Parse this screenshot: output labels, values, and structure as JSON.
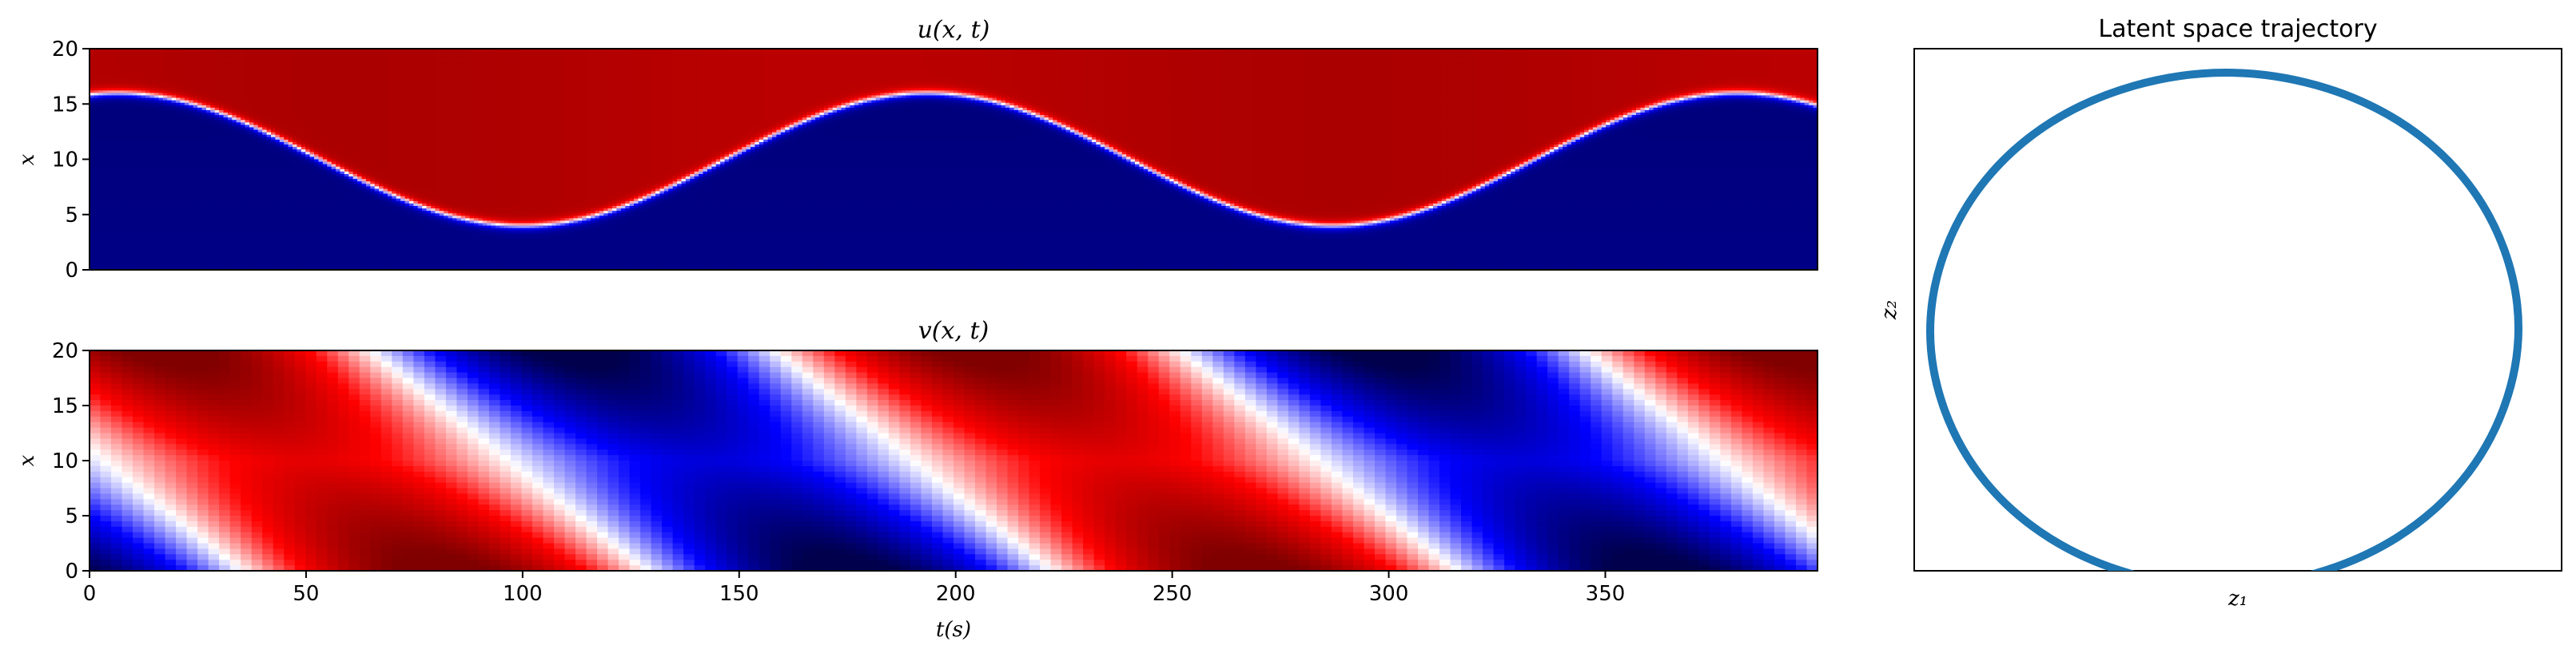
{
  "chart_data": [
    {
      "type": "heatmap",
      "title": "u(x, t)",
      "ylabel": "x",
      "xlim": [
        0,
        399
      ],
      "ylim": [
        0,
        20
      ],
      "yticks": [
        "0",
        "5",
        "10",
        "15",
        "20"
      ],
      "colormap": "seismic",
      "front": {
        "mean_x": 10.0,
        "amplitude_x": 6.0,
        "period_t": 187,
        "phase_peak_t": 100
      },
      "description_values": {
        "below_front": "negative (blue)",
        "above_front": "positive (red)"
      }
    },
    {
      "type": "heatmap",
      "title": "v(x, t)",
      "xlabel": "t(s)",
      "ylabel": "x",
      "xlim": [
        0,
        399
      ],
      "ylim": [
        0,
        20
      ],
      "xticks": [
        "0",
        "50",
        "100",
        "150",
        "200",
        "250",
        "300",
        "350"
      ],
      "yticks": [
        "0",
        "5",
        "10",
        "15",
        "20"
      ],
      "colormap": "seismic",
      "wave": {
        "period_t": 187,
        "red_peak_t": 50,
        "blue_peak_t": 140
      }
    },
    {
      "type": "line",
      "title": "Latent space trajectory",
      "xlabel": "z₁",
      "ylabel": "z₂",
      "color": "#1f77b4",
      "shape": "closed loop (ellipse)",
      "x": [
        0.0,
        0.31,
        0.59,
        0.81,
        0.95,
        1.0,
        0.95,
        0.81,
        0.59,
        0.31,
        0.0,
        -0.31,
        -0.59,
        -0.81,
        -0.95,
        -1.0,
        -0.95,
        -0.81,
        -0.59,
        -0.31,
        0.0
      ],
      "y": [
        1.0,
        0.95,
        0.81,
        0.59,
        0.31,
        0.0,
        -0.31,
        -0.59,
        -0.81,
        -0.95,
        -1.0,
        -0.95,
        -0.81,
        -0.59,
        -0.31,
        0.0,
        0.31,
        0.59,
        0.81,
        0.95,
        1.0
      ]
    }
  ]
}
